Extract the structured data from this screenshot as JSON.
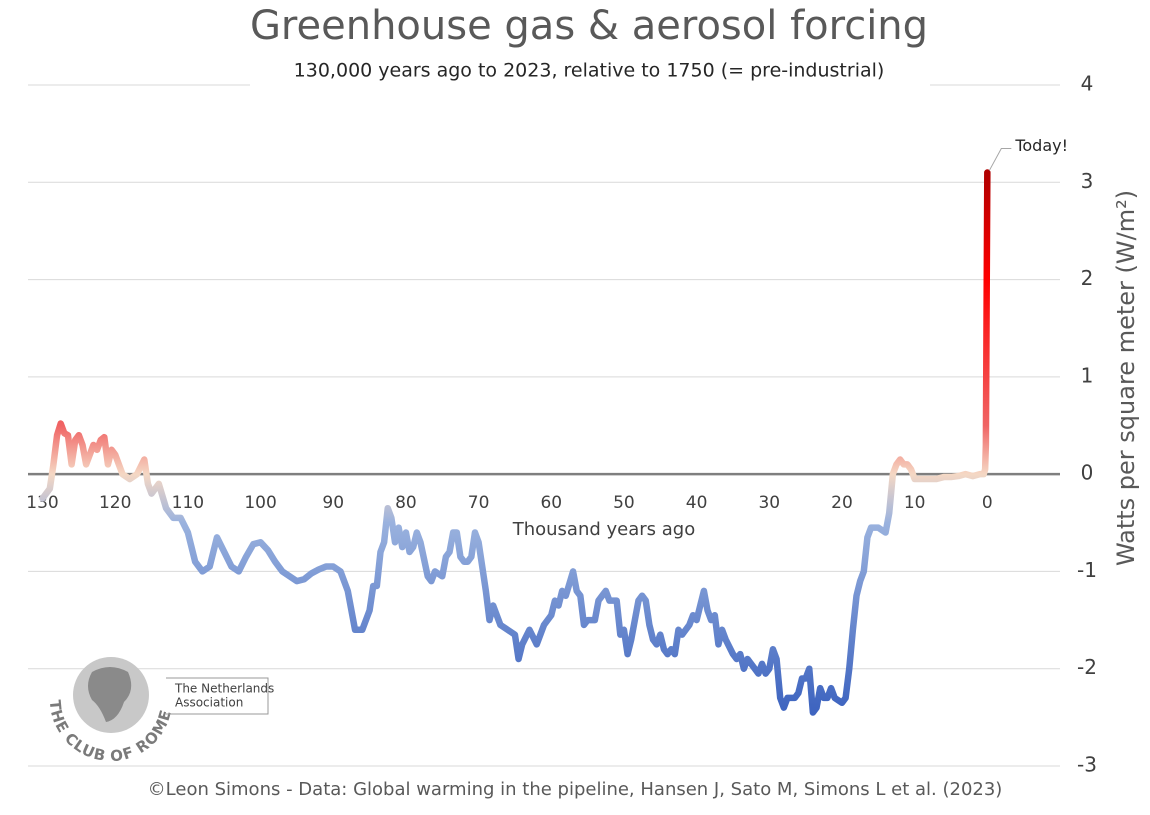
{
  "chart_data": {
    "type": "line",
    "title": "Greenhouse gas & aerosol forcing",
    "subtitle": "130,000 years ago to 2023, relative to 1750 (= pre-industrial)",
    "x_label": "Thousand years ago",
    "y_label": "Watts per square meter (W/m²)",
    "source": "©Leon Simons - Data: Global warming in the pipeline, Hansen J, Sato M, Simons L et al. (2023)",
    "logo_text": "THE CLUB OF ROME",
    "logo_subtext": [
      "The Netherlands",
      "Association"
    ],
    "annotation": {
      "text": "Today!",
      "x": 0,
      "y": 3.1
    },
    "xlim": [
      132,
      -10
    ],
    "xticks": [
      130,
      120,
      110,
      100,
      90,
      80,
      70,
      60,
      50,
      40,
      30,
      20,
      10,
      0
    ],
    "ylim": [
      -3,
      4
    ],
    "yticks": [
      -3,
      -2,
      -1,
      0,
      1,
      2,
      3,
      4
    ],
    "y_axis_side": "right",
    "grid": true,
    "colorscale": [
      [
        -2.4,
        "#3f65c0"
      ],
      [
        -0.5,
        "#9ab2de"
      ],
      [
        0,
        "#f5d8c4"
      ],
      [
        0.5,
        "#f06464"
      ],
      [
        2,
        "#ff0000"
      ],
      [
        3.1,
        "#b00000"
      ]
    ],
    "series": [
      {
        "name": "Forcing",
        "x": [
          130,
          129,
          128.5,
          128,
          127.5,
          127,
          126.5,
          126,
          125.5,
          125,
          124.5,
          124,
          123,
          122.5,
          122,
          121.5,
          121,
          120.5,
          120,
          119,
          118,
          117,
          116,
          115.5,
          115,
          114,
          113,
          112,
          111,
          110,
          109,
          108,
          107,
          106,
          105,
          104,
          103,
          102,
          101,
          100,
          99,
          98,
          97,
          96,
          95,
          94,
          93,
          92,
          91,
          90,
          89,
          88,
          87,
          86,
          85,
          84.5,
          84,
          83.5,
          83,
          82.5,
          82,
          81.5,
          81,
          80.5,
          80,
          79.5,
          79,
          78.5,
          78,
          77,
          76.5,
          76,
          75,
          74.5,
          74,
          73.5,
          73,
          72.5,
          72,
          71.5,
          71,
          70.5,
          70,
          69.5,
          69,
          68.5,
          68,
          67,
          66,
          65,
          64.5,
          64,
          63,
          62,
          61,
          60,
          59.5,
          59,
          58.5,
          58,
          57,
          56.5,
          56,
          55.5,
          55,
          54,
          53.5,
          53,
          52.5,
          52,
          51,
          50.5,
          50,
          49.5,
          49,
          48.5,
          48,
          47.5,
          47,
          46.5,
          46,
          45.5,
          45,
          44.5,
          44,
          43.5,
          43,
          42.5,
          42,
          41,
          40.5,
          40,
          39,
          38.5,
          38,
          37.5,
          37,
          36.5,
          36,
          35,
          34.5,
          34,
          33.5,
          33,
          32,
          31.5,
          31,
          30.5,
          30,
          29.5,
          29,
          28.5,
          28,
          27.5,
          27,
          26.5,
          26,
          25.5,
          25,
          24.5,
          24,
          23.5,
          23,
          22.5,
          22,
          21.5,
          21,
          20,
          19.5,
          19,
          18.5,
          18,
          17.5,
          17,
          16.5,
          16,
          15,
          14,
          13.5,
          13,
          12.5,
          12,
          11.5,
          11,
          10.5,
          10,
          9,
          8,
          7,
          6,
          5,
          4,
          3,
          2,
          1,
          0.5,
          0.3,
          0.2,
          0
        ],
        "values": [
          -0.25,
          -0.15,
          0.1,
          0.4,
          0.52,
          0.42,
          0.4,
          0.1,
          0.35,
          0.4,
          0.3,
          0.1,
          0.3,
          0.25,
          0.35,
          0.38,
          0.1,
          0.25,
          0.2,
          0.0,
          -0.05,
          0.0,
          0.15,
          -0.1,
          -0.2,
          -0.1,
          -0.35,
          -0.45,
          -0.45,
          -0.6,
          -0.9,
          -1.0,
          -0.95,
          -0.65,
          -0.8,
          -0.95,
          -1.0,
          -0.85,
          -0.72,
          -0.7,
          -0.78,
          -0.9,
          -1.0,
          -1.05,
          -1.1,
          -1.08,
          -1.02,
          -0.98,
          -0.95,
          -0.95,
          -1.0,
          -1.2,
          -1.6,
          -1.6,
          -1.4,
          -1.15,
          -1.15,
          -0.8,
          -0.7,
          -0.35,
          -0.45,
          -0.7,
          -0.55,
          -0.75,
          -0.6,
          -0.8,
          -0.75,
          -0.6,
          -0.7,
          -1.05,
          -1.1,
          -1.0,
          -1.05,
          -0.85,
          -0.8,
          -0.6,
          -0.6,
          -0.85,
          -0.9,
          -0.9,
          -0.85,
          -0.6,
          -0.7,
          -0.95,
          -1.2,
          -1.5,
          -1.35,
          -1.55,
          -1.6,
          -1.65,
          -1.9,
          -1.75,
          -1.6,
          -1.75,
          -1.55,
          -1.45,
          -1.3,
          -1.35,
          -1.2,
          -1.25,
          -1.0,
          -1.2,
          -1.25,
          -1.55,
          -1.5,
          -1.5,
          -1.3,
          -1.25,
          -1.2,
          -1.3,
          -1.3,
          -1.65,
          -1.6,
          -1.85,
          -1.7,
          -1.5,
          -1.3,
          -1.25,
          -1.3,
          -1.55,
          -1.7,
          -1.75,
          -1.65,
          -1.8,
          -1.85,
          -1.8,
          -1.85,
          -1.6,
          -1.65,
          -1.55,
          -1.45,
          -1.5,
          -1.2,
          -1.4,
          -1.5,
          -1.45,
          -1.75,
          -1.6,
          -1.7,
          -1.85,
          -1.9,
          -1.85,
          -2.0,
          -1.9,
          -2.0,
          -2.05,
          -1.95,
          -2.05,
          -2.0,
          -1.8,
          -1.9,
          -2.3,
          -2.4,
          -2.3,
          -2.3,
          -2.3,
          -2.25,
          -2.1,
          -2.1,
          -2.0,
          -2.45,
          -2.4,
          -2.2,
          -2.3,
          -2.3,
          -2.2,
          -2.3,
          -2.35,
          -2.3,
          -2.0,
          -1.6,
          -1.25,
          -1.1,
          -1.0,
          -0.65,
          -0.55,
          -0.55,
          -0.6,
          -0.4,
          0.0,
          0.1,
          0.15,
          0.1,
          0.1,
          0.05,
          -0.05,
          -0.05,
          -0.05,
          -0.05,
          -0.03,
          -0.03,
          -0.02,
          0.0,
          -0.02,
          0.0,
          0.0,
          0.05,
          0.3,
          3.1
        ]
      }
    ]
  }
}
